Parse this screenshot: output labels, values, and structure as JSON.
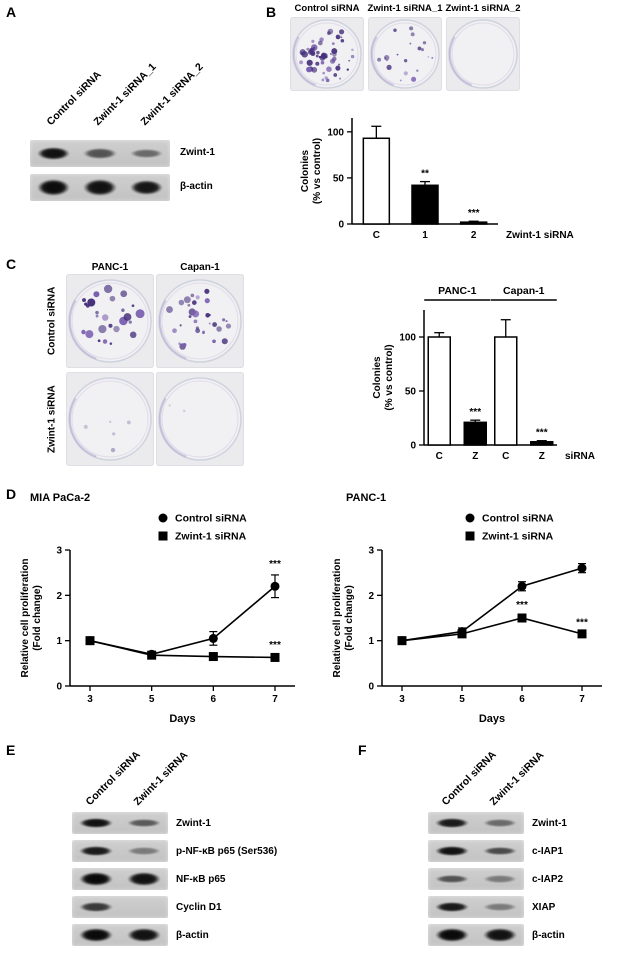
{
  "colors": {
    "bar_white": "#ffffff",
    "bar_black": "#000000",
    "colony_dot_dark": "#46307c",
    "colony_dot_light": "#7a5fb0",
    "dish_ring": "#9d8fc4",
    "blot_background": "#c8c8c8"
  },
  "panels": {
    "A": {
      "label": "A",
      "lanes": [
        "Control siRNA",
        "Zwint-1 siRNA_1",
        "Zwint-1 siRNA_2"
      ],
      "rows": [
        {
          "label": "Zwint-1",
          "bands": [
            0.95,
            0.55,
            0.4
          ]
        },
        {
          "label": "β-actin",
          "bands": [
            0.98,
            0.95,
            0.92
          ],
          "thick": true
        }
      ]
    },
    "B": {
      "label": "B",
      "dishes": [
        {
          "label": "Control siRNA",
          "colonies": 60,
          "seed": 11,
          "dot_opacity": 1,
          "dot_scale": 1.1
        },
        {
          "label": "Zwint-1 siRNA_1",
          "colonies": 20,
          "seed": 22,
          "dot_opacity": 0.9,
          "dot_scale": 0.9
        },
        {
          "label": "Zwint-1 siRNA_2",
          "colonies": 0,
          "seed": 33,
          "dot_opacity": 0,
          "dot_scale": 1
        }
      ]
    },
    "C": {
      "label": "C",
      "col_headers": [
        "PANC-1",
        "Capan-1"
      ],
      "row_headers": [
        "Control siRNA",
        "Zwint-1 siRNA"
      ],
      "dishes": [
        {
          "label": "PANC-1 Control siRNA",
          "colonies": 26,
          "seed": 44,
          "dot_opacity": 1,
          "dot_scale": 1.5
        },
        {
          "label": "Capan-1 Control siRNA",
          "colonies": 32,
          "seed": 55,
          "dot_opacity": 1,
          "dot_scale": 1.2
        },
        {
          "label": "PANC-1 Zwint-1 siRNA",
          "colonies": 5,
          "seed": 66,
          "dot_opacity": 0.45,
          "dot_scale": 0.8
        },
        {
          "label": "Capan-1 Zwint-1 siRNA",
          "colonies": 2,
          "seed": 77,
          "dot_opacity": 0.35,
          "dot_scale": 0.7
        }
      ]
    },
    "D": {
      "label": "D"
    },
    "E": {
      "label": "E",
      "lanes": [
        "Control siRNA",
        "Zwint-1 siRNA"
      ],
      "rows": [
        {
          "label": "Zwint-1",
          "bands": [
            0.95,
            0.5
          ]
        },
        {
          "label": "p-NF-κB p65 (Ser536)",
          "bands": [
            0.9,
            0.3
          ]
        },
        {
          "label": "NF-κB p65",
          "bands": [
            1,
            0.95
          ],
          "thick": true
        },
        {
          "label": "Cyclin D1",
          "bands": [
            0.7,
            0.05
          ]
        },
        {
          "label": "β-actin",
          "bands": [
            1,
            0.95
          ],
          "thick": true
        }
      ]
    },
    "F": {
      "label": "F",
      "lanes": [
        "Control siRNA",
        "Zwint-1 siRNA"
      ],
      "rows": [
        {
          "label": "Zwint-1",
          "bands": [
            0.9,
            0.4
          ]
        },
        {
          "label": "c-IAP1",
          "bands": [
            0.95,
            0.6
          ]
        },
        {
          "label": "c-IAP2",
          "bands": [
            0.55,
            0.3
          ]
        },
        {
          "label": "XIAP",
          "bands": [
            0.9,
            0.3
          ]
        },
        {
          "label": "β-actin",
          "bands": [
            1,
            0.95
          ],
          "thick": true
        }
      ]
    }
  },
  "chart_data": [
    {
      "type": "bar",
      "title": "",
      "categories": [
        "C",
        "1",
        "2"
      ],
      "values": [
        93,
        42,
        2
      ],
      "errors": [
        13,
        4,
        1
      ],
      "bar_fills": [
        "#ffffff",
        "#000000",
        "#000000"
      ],
      "annotations_above": [
        "",
        "**",
        "***"
      ],
      "ylabel_lines": [
        "Colonies",
        "(% vs control)"
      ],
      "yticks": [
        0,
        50,
        100
      ],
      "ylim": [
        0,
        115
      ],
      "x_axis_right_label": "Zwint-1 siRNA",
      "grid": false
    },
    {
      "type": "grouped-bar",
      "title": "",
      "categories": [
        "C",
        "Z"
      ],
      "groups": [
        {
          "label": "PANC-1",
          "values": [
            100,
            21
          ],
          "errors": [
            4,
            2
          ],
          "annotations": [
            "",
            "***"
          ]
        },
        {
          "label": "Capan-1",
          "values": [
            100,
            3
          ],
          "errors": [
            16,
            1
          ],
          "annotations": [
            "",
            "***"
          ]
        }
      ],
      "bar_fills": [
        "#ffffff",
        "#000000"
      ],
      "ylabel_lines": [
        "Colonies",
        "(% vs control)"
      ],
      "yticks": [
        0,
        50,
        100
      ],
      "ylim": [
        0,
        125
      ],
      "x_axis_right_label": "siRNA",
      "grid": false
    },
    {
      "type": "line",
      "title": "MIA PaCa-2",
      "x_labels": [
        "3",
        "5",
        "6",
        "7"
      ],
      "series": [
        {
          "name": "Control siRNA",
          "marker": "circle",
          "values": [
            1.0,
            0.7,
            1.05,
            2.2
          ],
          "errors": [
            0.05,
            0.04,
            0.15,
            0.25
          ]
        },
        {
          "name": "Zwint-1 siRNA",
          "marker": "square",
          "values": [
            1.0,
            0.68,
            0.65,
            0.63
          ],
          "errors": [
            0.04,
            0.03,
            0.03,
            0.04
          ]
        }
      ],
      "annotations": [
        {
          "xi": 3,
          "y": 2.62,
          "text": "***"
        },
        {
          "xi": 3,
          "y": 0.84,
          "text": "***"
        }
      ],
      "ylabel_lines": [
        "Relative cell proliferation",
        "(Fold change)"
      ],
      "xlabel": "Days",
      "yticks": [
        0,
        1,
        2,
        3
      ],
      "ylim": [
        0,
        3
      ],
      "legend_position": "top-right",
      "grid": false
    },
    {
      "type": "line",
      "title": "PANC-1",
      "x_labels": [
        "3",
        "5",
        "6",
        "7"
      ],
      "series": [
        {
          "name": "Control siRNA",
          "marker": "circle",
          "values": [
            1.0,
            1.2,
            2.2,
            2.6
          ],
          "errors": [
            0.04,
            0.08,
            0.1,
            0.1
          ]
        },
        {
          "name": "Zwint-1 siRNA",
          "marker": "square",
          "values": [
            1.0,
            1.15,
            1.5,
            1.15
          ],
          "errors": [
            0.04,
            0.05,
            0.06,
            0.05
          ]
        }
      ],
      "annotations": [
        {
          "xi": 2,
          "y": 1.72,
          "text": "***"
        },
        {
          "xi": 3,
          "y": 1.33,
          "text": "***"
        }
      ],
      "ylabel_lines": [
        "Relative cell proliferation",
        "(Fold change)"
      ],
      "xlabel": "Days",
      "yticks": [
        0,
        1,
        2,
        3
      ],
      "ylim": [
        0,
        3
      ],
      "legend_position": "top-right",
      "grid": false
    }
  ]
}
